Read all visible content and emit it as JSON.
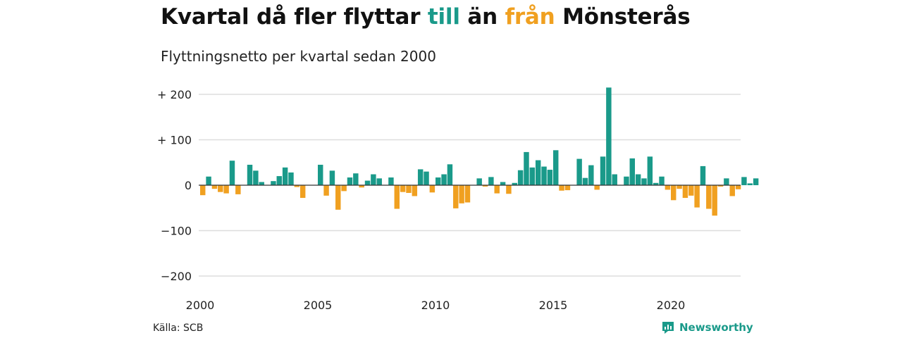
{
  "title": {
    "part1": "Kvartal då fler flyttar ",
    "word_in": "till",
    "part2": " än ",
    "word_out": "från",
    "part3": " Mönsterås"
  },
  "subtitle": "Flyttningsnetto per kvartal sedan 2000",
  "source": "Källa: SCB",
  "brand": "Newsworthy",
  "colors": {
    "positive": "#1a9a8a",
    "negative": "#f0a020",
    "grid": "#dddddd",
    "zero_line": "#333333"
  },
  "chart_data": {
    "type": "bar",
    "ylim": [
      -200,
      200
    ],
    "y_ticks": [
      {
        "value": 200,
        "label": "+ 200"
      },
      {
        "value": 100,
        "label": "+ 100"
      },
      {
        "value": 0,
        "label": "0"
      },
      {
        "value": -100,
        "label": "−100"
      },
      {
        "value": -200,
        "label": "−200"
      }
    ],
    "x_ticks": [
      "2000",
      "2005",
      "2010",
      "2015",
      "2020"
    ],
    "x_start": "2000 Q1",
    "values": [
      -22,
      19,
      -8,
      -15,
      -18,
      54,
      -20,
      0,
      45,
      32,
      7,
      0,
      9,
      20,
      39,
      28,
      -4,
      -28,
      0,
      0,
      45,
      -23,
      32,
      -54,
      -13,
      17,
      26,
      -5,
      10,
      24,
      15,
      0,
      17,
      -52,
      -15,
      -17,
      -24,
      35,
      30,
      -16,
      17,
      24,
      46,
      -51,
      -40,
      -38,
      0,
      15,
      -3,
      18,
      -18,
      7,
      -19,
      5,
      33,
      73,
      39,
      55,
      41,
      34,
      77,
      -12,
      -11,
      0,
      58,
      16,
      44,
      -10,
      63,
      215,
      24,
      0,
      19,
      59,
      24,
      15,
      63,
      5,
      19,
      -10,
      -33,
      -8,
      -28,
      -23,
      -49,
      42,
      -52,
      -67,
      -3,
      15,
      -24,
      -9,
      18,
      4,
      15
    ]
  }
}
